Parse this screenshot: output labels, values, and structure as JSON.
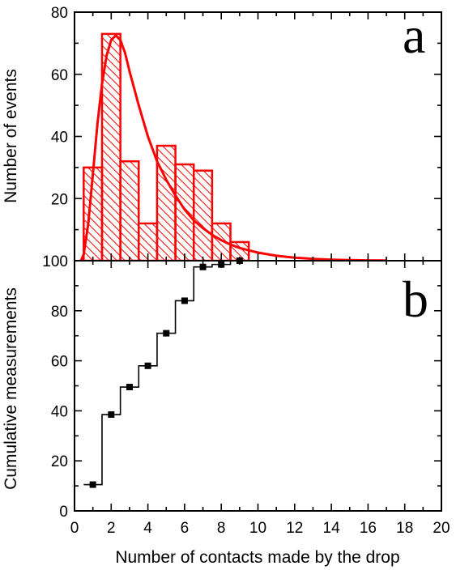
{
  "chart_data": [
    {
      "panel": "a",
      "type": "bar",
      "label": "a",
      "xlabel": "",
      "ylabel": "Number of events",
      "xlim": [
        0,
        20
      ],
      "ylim": [
        0,
        80
      ],
      "yticks": [
        "0",
        "20",
        "40",
        "60",
        "80"
      ],
      "bar_color": "#ff0000",
      "bar_fill": "hatched",
      "bins": [
        {
          "x": 1,
          "value": 30
        },
        {
          "x": 2,
          "value": 73
        },
        {
          "x": 3,
          "value": 32
        },
        {
          "x": 4,
          "value": 12
        },
        {
          "x": 5,
          "value": 37
        },
        {
          "x": 6,
          "value": 31
        },
        {
          "x": 7,
          "value": 29
        },
        {
          "x": 8,
          "value": 12
        },
        {
          "x": 9,
          "value": 6
        }
      ],
      "bin_width": 1,
      "fit_curve": {
        "type": "line",
        "color": "#ff0000",
        "points": [
          [
            0.35,
            0
          ],
          [
            0.5,
            2
          ],
          [
            0.75,
            12
          ],
          [
            1.0,
            28
          ],
          [
            1.25,
            44
          ],
          [
            1.5,
            57
          ],
          [
            1.75,
            66
          ],
          [
            2.0,
            71
          ],
          [
            2.25,
            72.5
          ],
          [
            2.5,
            71
          ],
          [
            2.75,
            67
          ],
          [
            3.0,
            61
          ],
          [
            3.5,
            50
          ],
          [
            4.0,
            40
          ],
          [
            4.5,
            32
          ],
          [
            5.0,
            26
          ],
          [
            5.5,
            21
          ],
          [
            6.0,
            16.5
          ],
          [
            6.5,
            13
          ],
          [
            7.0,
            10.5
          ],
          [
            7.5,
            8.3
          ],
          [
            8.0,
            6.6
          ],
          [
            8.5,
            5.2
          ],
          [
            9.0,
            4.1
          ],
          [
            10.0,
            2.6
          ],
          [
            11.0,
            1.6
          ],
          [
            12.0,
            1.0
          ],
          [
            13.0,
            0.6
          ],
          [
            14.0,
            0.35
          ],
          [
            15.0,
            0.2
          ],
          [
            16.0,
            0.1
          ],
          [
            17.0,
            0.05
          ]
        ]
      }
    },
    {
      "panel": "b",
      "type": "line",
      "label": "b",
      "xlabel": "Number of contacts made by the drop",
      "ylabel": "Cumulative measurements",
      "xlim": [
        0,
        20
      ],
      "ylim": [
        0,
        100
      ],
      "xticks": [
        "0",
        "2",
        "4",
        "6",
        "8",
        "10",
        "12",
        "14",
        "16",
        "18",
        "20"
      ],
      "yticks": [
        "0",
        "20",
        "40",
        "60",
        "80",
        "100"
      ],
      "color": "#000000",
      "marker": "square",
      "step_points": [
        {
          "x": 1,
          "y": 10.5
        },
        {
          "x": 2,
          "y": 38.5
        },
        {
          "x": 3,
          "y": 49.5
        },
        {
          "x": 4,
          "y": 58
        },
        {
          "x": 5,
          "y": 71
        },
        {
          "x": 6,
          "y": 84
        },
        {
          "x": 7,
          "y": 97.5
        },
        {
          "x": 8,
          "y": 98.5
        },
        {
          "x": 9,
          "y": 100
        }
      ]
    }
  ]
}
